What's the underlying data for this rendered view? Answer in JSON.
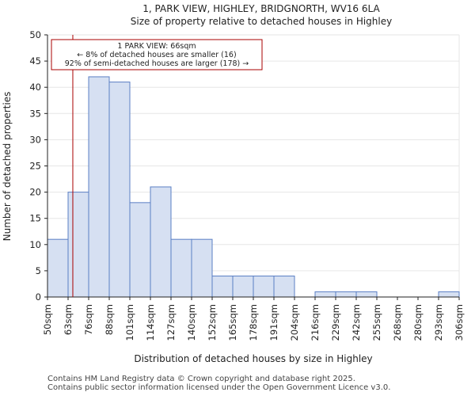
{
  "chart_data": {
    "type": "bar",
    "title": "1, PARK VIEW, HIGHLEY, BRIDGNORTH, WV16 6LA",
    "subtitle": "Size of property relative to detached houses in Highley",
    "xlabel": "Distribution of detached houses by size in Highley",
    "ylabel": "Number of detached properties",
    "bin_labels": [
      "50sqm",
      "63sqm",
      "76sqm",
      "88sqm",
      "101sqm",
      "114sqm",
      "127sqm",
      "140sqm",
      "152sqm",
      "165sqm",
      "178sqm",
      "191sqm",
      "204sqm",
      "216sqm",
      "229sqm",
      "242sqm",
      "255sqm",
      "268sqm",
      "280sqm",
      "293sqm",
      "306sqm"
    ],
    "values": [
      11,
      20,
      42,
      41,
      18,
      21,
      11,
      11,
      4,
      4,
      4,
      4,
      0,
      1,
      1,
      1,
      0,
      0,
      0,
      1
    ],
    "ylim": [
      0,
      50
    ],
    "yticks": [
      0,
      5,
      10,
      15,
      20,
      25,
      30,
      35,
      40,
      45,
      50
    ],
    "property_line": {
      "value_sqm": 66,
      "bin_position": 1.23
    },
    "annotation": {
      "line1": "1 PARK VIEW: 66sqm",
      "line2": "← 8% of detached houses are smaller (16)",
      "line3": "92% of semi-detached houses are larger (178) →"
    },
    "colors": {
      "bar_fill": "#d6e0f2",
      "bar_edge": "#5b7fc4",
      "marker": "#aa0000",
      "axis": "#222222"
    }
  },
  "footer": {
    "line1": "Contains HM Land Registry data © Crown copyright and database right 2025.",
    "line2": "Contains public sector information licensed under the Open Government Licence v3.0."
  }
}
